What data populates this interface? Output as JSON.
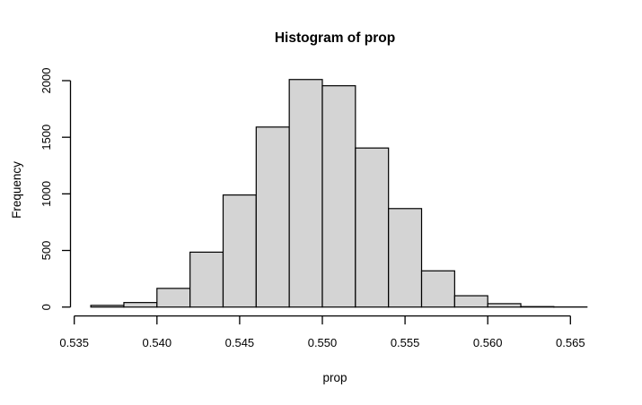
{
  "figure": {
    "background_color": "#ffffff",
    "text_color": "#000000"
  },
  "chart_data": {
    "type": "bar",
    "subtype": "histogram",
    "title": "Histogram of prop",
    "xlabel": "prop",
    "ylabel": "Frequency",
    "bin_start": 0.536,
    "bin_width": 0.002,
    "bin_edges": [
      0.536,
      0.538,
      0.54,
      0.542,
      0.544,
      0.546,
      0.548,
      0.55,
      0.552,
      0.554,
      0.556,
      0.558,
      0.56,
      0.562,
      0.564,
      0.566
    ],
    "counts": [
      15,
      40,
      165,
      485,
      990,
      1590,
      2010,
      1955,
      1405,
      870,
      320,
      100,
      30,
      4,
      1
    ],
    "xlim": [
      0.535,
      0.565
    ],
    "ylim": [
      0,
      2000
    ],
    "x_ticks": [
      0.535,
      0.54,
      0.545,
      0.55,
      0.555,
      0.56,
      0.565
    ],
    "x_tick_labels": [
      "0.535",
      "0.540",
      "0.545",
      "0.550",
      "0.555",
      "0.560",
      "0.565"
    ],
    "y_ticks": [
      0,
      500,
      1000,
      1500,
      2000
    ],
    "y_tick_labels": [
      "0",
      "500",
      "1000",
      "1500",
      "2000"
    ],
    "grid": false,
    "legend": null,
    "style": {
      "bar_fill": "#d4d4d4",
      "bar_border": "#000000",
      "axis_color": "#000000",
      "y_tick_label_rotation_deg": -90
    }
  }
}
